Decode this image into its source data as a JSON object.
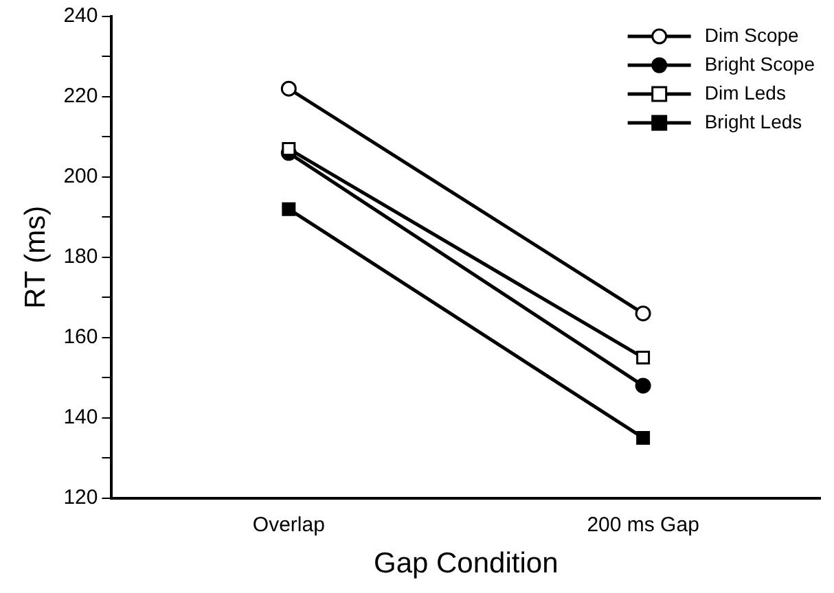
{
  "chart_data": {
    "type": "line",
    "xlabel": "Gap Condition",
    "ylabel": "RT (ms)",
    "categories": [
      "Overlap",
      "200 ms Gap"
    ],
    "series": [
      {
        "name": "Dim Scope",
        "color": "#000000",
        "colors": [
          "#ffffff",
          "#ffffff"
        ],
        "marker": "circle",
        "values": [
          222,
          166
        ]
      },
      {
        "name": "Bright Scope",
        "color": "#000000",
        "marker": "circle",
        "values": [
          206,
          148
        ]
      },
      {
        "name": "Dim Leds",
        "color": "#000000",
        "colors": [
          "#ffffff",
          "#ffffff"
        ],
        "marker": "square",
        "values": [
          207,
          155
        ]
      },
      {
        "name": "Bright Leds",
        "color": "#000000",
        "marker": "square",
        "values": [
          192,
          135
        ]
      }
    ],
    "ylim": [
      120,
      240
    ],
    "yticks": [
      120,
      {
        "value": 130,
        "label": null
      },
      140,
      {
        "value": 150,
        "label": null
      },
      160,
      {
        "value": 170,
        "label": null
      },
      180,
      {
        "value": 190,
        "label": null
      },
      200,
      {
        "value": 210,
        "label": null
      },
      220,
      {
        "value": 230,
        "label": null
      },
      240
    ],
    "grid": false,
    "legend": "top right",
    "line_style": "solid"
  }
}
